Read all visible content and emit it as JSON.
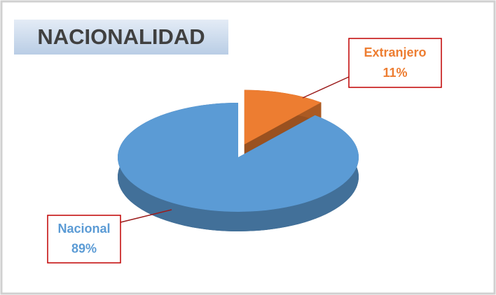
{
  "chart_data": {
    "type": "pie",
    "title": "NACIONALIDAD",
    "categories": [
      "Nacional",
      "Extranjero"
    ],
    "values": [
      89,
      11
    ],
    "value_labels": [
      "89%",
      "11%"
    ],
    "colors": [
      "#5B9BD5",
      "#ED7D31"
    ]
  }
}
